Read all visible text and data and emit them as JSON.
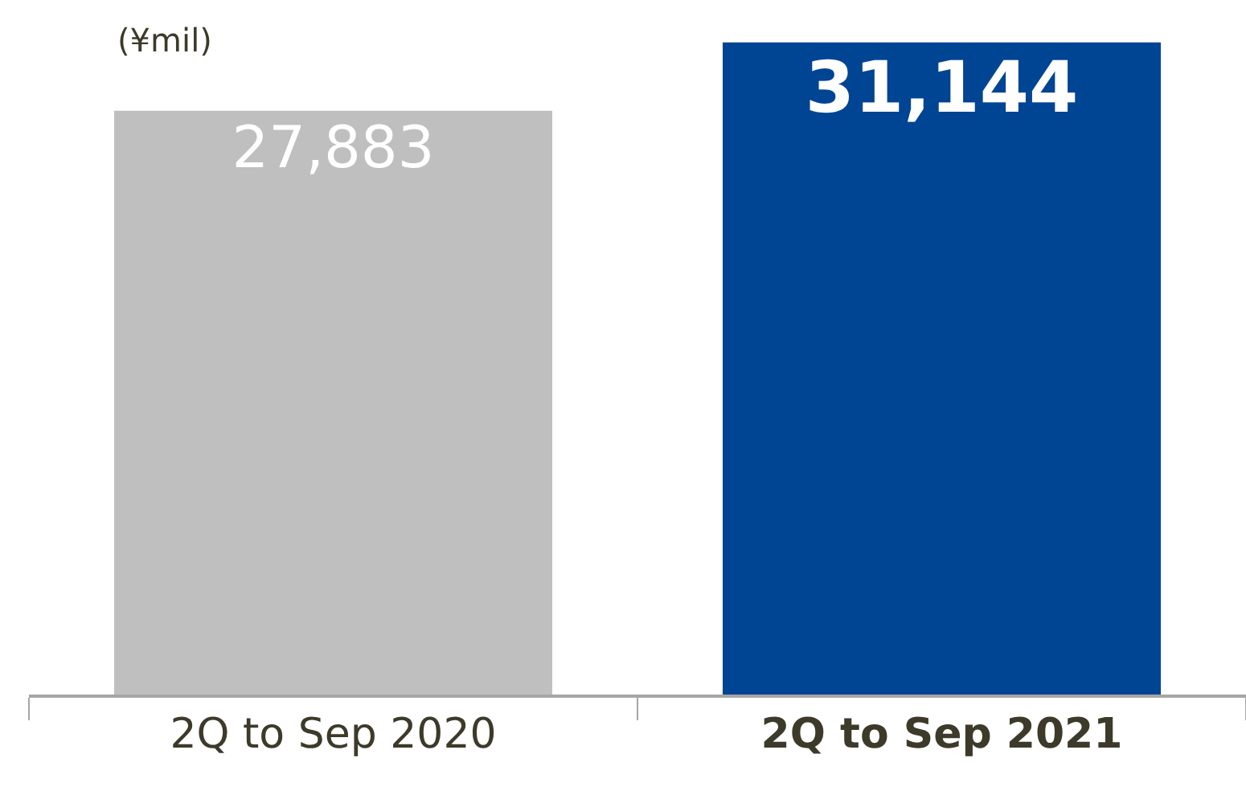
{
  "chart_data": {
    "type": "bar",
    "categories": [
      "2Q to Sep 2020",
      "2Q to Sep 2021"
    ],
    "values": [
      27883,
      31144
    ],
    "value_labels": [
      "27,883",
      "31,144"
    ],
    "colors": [
      "#bfbfbf",
      "#004494"
    ],
    "grid": false,
    "annotations": [
      "(¥mil)"
    ]
  }
}
